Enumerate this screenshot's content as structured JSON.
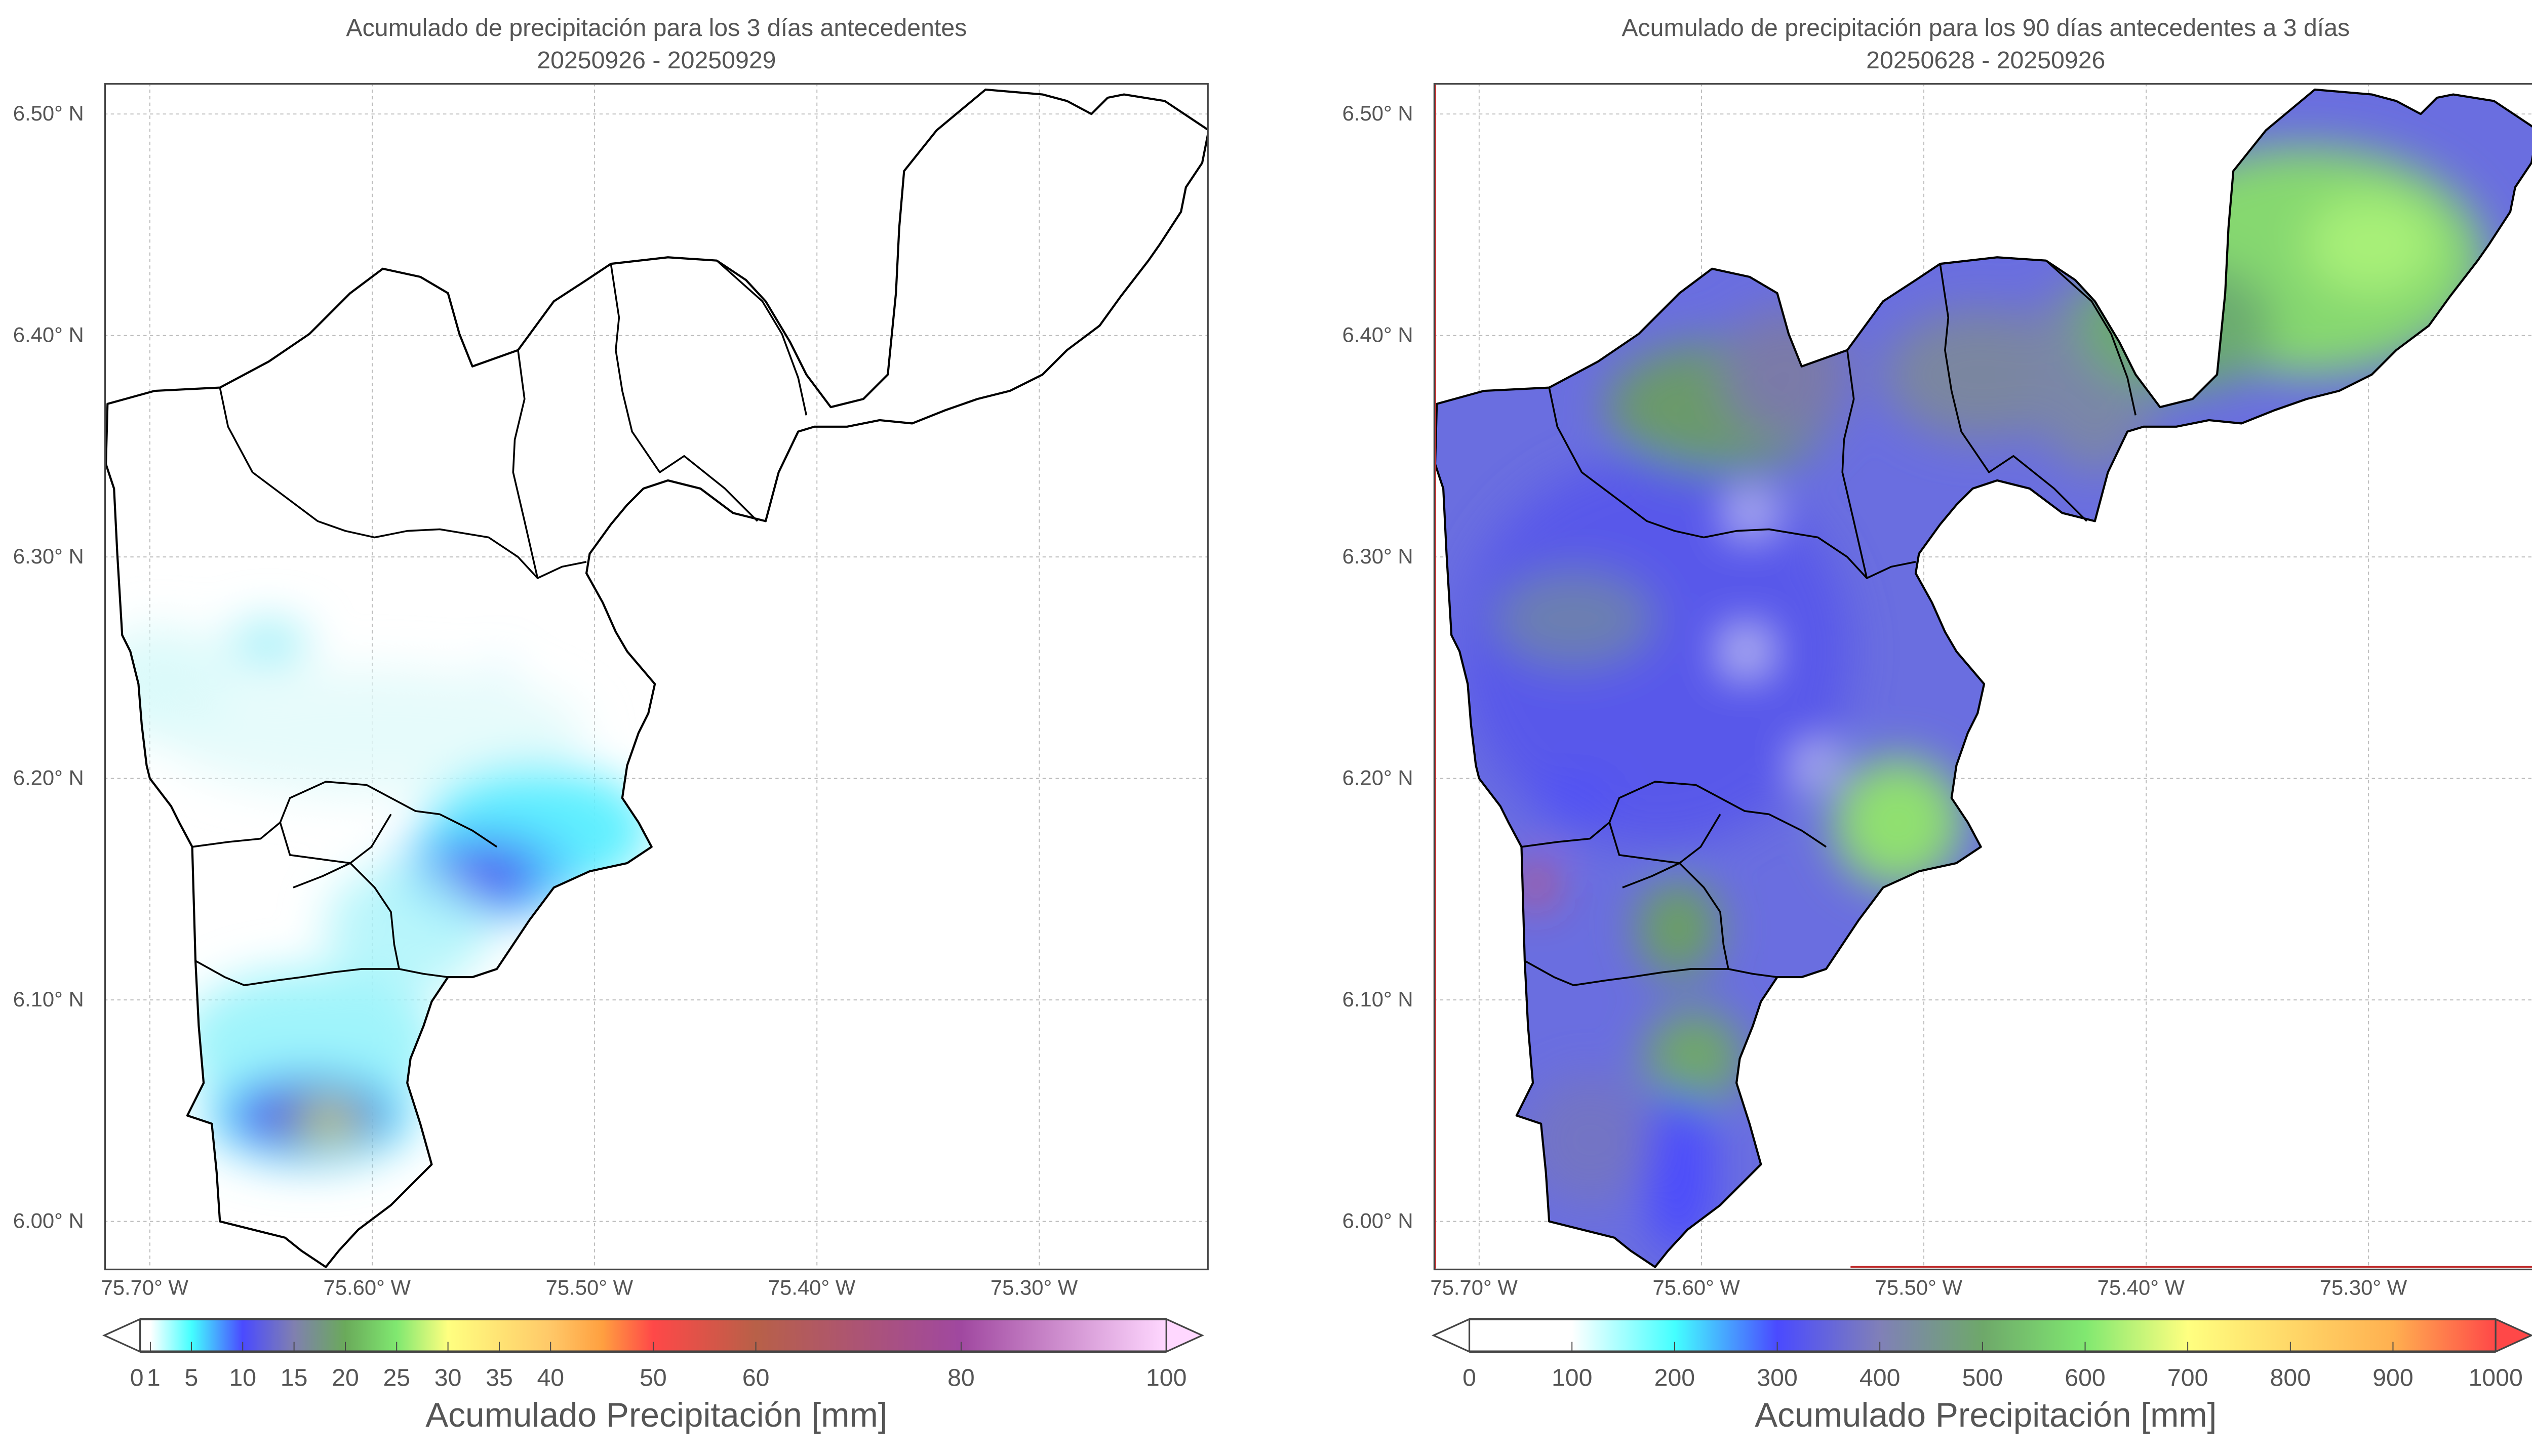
{
  "left_map": {
    "title_line1": "Acumulado de precipitación para los 3 días antecedentes",
    "title_line2": "20250926 - 20250929",
    "colorbar": {
      "label": "Acumulado Precipitación [mm]",
      "ticks": [
        0,
        1,
        5,
        10,
        15,
        20,
        25,
        30,
        35,
        40,
        50,
        60,
        80,
        100
      ],
      "tick_labels": [
        "0",
        "1",
        "5",
        "10",
        "15",
        "20",
        "25",
        "30",
        "35",
        "40",
        "50",
        "60",
        "80",
        "100"
      ],
      "range": [
        0,
        100
      ],
      "extend": "both",
      "colors": [
        [
          "0",
          "#ffffff"
        ],
        [
          "1",
          "#ffffff"
        ],
        [
          "5",
          "#44ffff"
        ],
        [
          "10",
          "#4a4aff"
        ],
        [
          "15",
          "#8080b0"
        ],
        [
          "20",
          "#6aaa5a"
        ],
        [
          "25",
          "#80e870"
        ],
        [
          "30",
          "#ffff80"
        ],
        [
          "40",
          "#ffc868"
        ],
        [
          "45",
          "#ffa040"
        ],
        [
          "50",
          "#ff4848"
        ],
        [
          "60",
          "#b86048"
        ],
        [
          "80",
          "#a048a0"
        ],
        [
          "100",
          "#ffd8ff"
        ]
      ]
    }
  },
  "right_map": {
    "title_line1": "Acumulado de precipitación para los 90 días antecedentes a 3 días",
    "title_line2": "20250628 - 20250926",
    "colorbar": {
      "label": "Acumulado Precipitación [mm]",
      "ticks": [
        0,
        100,
        200,
        300,
        400,
        500,
        600,
        700,
        800,
        900,
        1000
      ],
      "tick_labels": [
        "0",
        "100",
        "200",
        "300",
        "400",
        "500",
        "600",
        "700",
        "800",
        "900",
        "1000"
      ],
      "range": [
        0,
        1000
      ],
      "extend": "both",
      "colors": [
        [
          "0",
          "#ffffff"
        ],
        [
          "100",
          "#ffffff"
        ],
        [
          "200",
          "#44ffff"
        ],
        [
          "300",
          "#4a4aff"
        ],
        [
          "400",
          "#8080b8"
        ],
        [
          "500",
          "#6ea86a"
        ],
        [
          "600",
          "#80e870"
        ],
        [
          "700",
          "#ffff80"
        ],
        [
          "900",
          "#ffb050"
        ],
        [
          "1000",
          "#ff4848"
        ]
      ]
    }
  },
  "axes": {
    "lat_ticks": [
      6.5,
      6.4,
      6.3,
      6.2,
      6.1,
      6.0
    ],
    "lat_labels": [
      "6.50° N",
      "6.40° N",
      "6.30° N",
      "6.20° N",
      "6.10° N",
      "6.00° N"
    ],
    "lon_ticks": [
      75.7,
      75.6,
      75.5,
      75.4,
      75.3
    ],
    "lon_labels": [
      "75.70° W",
      "75.60° W",
      "75.50° W",
      "75.40° W",
      "75.30° W"
    ],
    "gridlines": true
  }
}
